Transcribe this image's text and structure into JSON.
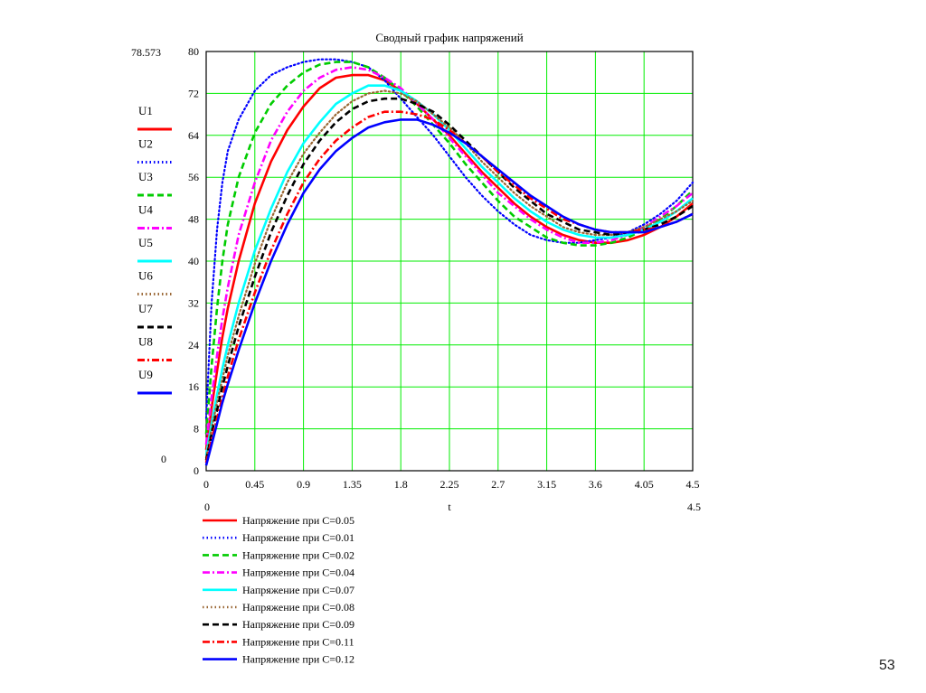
{
  "page": {
    "slide_number": "53"
  },
  "chart_data": {
    "type": "line",
    "title": "Сводный график напряжений",
    "xlabel": "t",
    "ylabel": "",
    "xlim": [
      0,
      4.5
    ],
    "ylim": [
      0,
      80
    ],
    "grid": true,
    "x_ticks": [
      "0",
      "0.45",
      "0.9",
      "1.35",
      "1.8",
      "2.25",
      "2.7",
      "3.15",
      "3.6",
      "4.05",
      "4.5"
    ],
    "y_ticks": [
      "0",
      "8",
      "16",
      "24",
      "32",
      "40",
      "48",
      "56",
      "64",
      "72",
      "80"
    ],
    "y_max_readout": "78.573",
    "y_min_readout": "0",
    "x_min_readout": "0",
    "x_max_readout": "4.5",
    "x": [
      0,
      0.05,
      0.1,
      0.15,
      0.2,
      0.3,
      0.45,
      0.6,
      0.75,
      0.9,
      1.05,
      1.2,
      1.35,
      1.5,
      1.65,
      1.8,
      1.95,
      2.1,
      2.25,
      2.4,
      2.55,
      2.7,
      2.85,
      3.0,
      3.15,
      3.3,
      3.45,
      3.6,
      3.75,
      3.9,
      4.05,
      4.2,
      4.35,
      4.5
    ],
    "series": [
      {
        "name": "U1",
        "legend": "Напряжение при C=0.05",
        "color": "#ff0000",
        "dash": "solid",
        "values": [
          4,
          12,
          19,
          25.5,
          31,
          40,
          51,
          59,
          65,
          69.5,
          73,
          75,
          75.5,
          75.5,
          74.5,
          72.5,
          70,
          67,
          64,
          60.5,
          57,
          54,
          51,
          48.5,
          46.5,
          45,
          44,
          43.5,
          43.5,
          44,
          45,
          46.5,
          48.5,
          51
        ]
      },
      {
        "name": "U2",
        "legend": "Напряжение при C=0.01",
        "color": "#0000ff",
        "dash": "dot",
        "values": [
          10,
          32,
          46,
          55,
          61,
          67,
          72.5,
          75.5,
          77,
          78,
          78.5,
          78.5,
          78,
          77,
          74.5,
          71,
          67.5,
          64,
          60,
          56,
          52.5,
          49.5,
          47,
          45,
          44,
          43.5,
          43.5,
          44,
          44.5,
          45.5,
          47,
          49,
          51.5,
          55
        ]
      },
      {
        "name": "U3",
        "legend": "Напряжение при C=0.02",
        "color": "#00cc00",
        "dash": "dash",
        "values": [
          7,
          20,
          31,
          40,
          47,
          56,
          64.5,
          70,
          73.5,
          76,
          77.5,
          78,
          78,
          77,
          75,
          72.5,
          69.5,
          66,
          62.5,
          58.5,
          55,
          51.5,
          48.5,
          46.5,
          44.5,
          43.5,
          43,
          43,
          43.5,
          44.5,
          46,
          48,
          50.5,
          53.5
        ]
      },
      {
        "name": "U4",
        "legend": "Напряжение при C=0.04",
        "color": "#ff00ff",
        "dash": "dashdot",
        "values": [
          5,
          14,
          22,
          29,
          35,
          45,
          55,
          63,
          68.5,
          72.5,
          75,
          76.5,
          77,
          76.5,
          75,
          73,
          70,
          67,
          63.5,
          60,
          56.5,
          53,
          50.5,
          48,
          46,
          44.5,
          43.5,
          43.5,
          44,
          45,
          46.5,
          48.5,
          50.5,
          53
        ]
      },
      {
        "name": "U5",
        "legend": "Напряжение при C=0.07",
        "color": "#00ffff",
        "dash": "solid",
        "values": [
          3,
          9,
          14.5,
          19.5,
          24,
          32,
          42,
          50,
          57,
          62.5,
          66.5,
          70,
          72,
          73.5,
          73.5,
          72.5,
          70.5,
          68,
          65,
          61.5,
          58,
          55,
          52,
          49.5,
          47.5,
          46,
          45,
          44.5,
          44.5,
          45,
          46,
          47.5,
          49.5,
          52
        ]
      },
      {
        "name": "U6",
        "legend": "Напряжение при C=0.08",
        "color": "#996633",
        "dash": "dot",
        "values": [
          2.5,
          8,
          13,
          17.5,
          22,
          29.5,
          39.5,
          48,
          55,
          60.5,
          64.5,
          68,
          70.5,
          72,
          72.5,
          72,
          70.5,
          68,
          65.5,
          62.5,
          59,
          56,
          53,
          50.5,
          48.5,
          46.5,
          45.5,
          45,
          45,
          45.5,
          46.5,
          48,
          49.5,
          51.5
        ]
      },
      {
        "name": "U7",
        "legend": "Напряжение при C=0.09",
        "color": "#000000",
        "dash": "dash",
        "values": [
          2,
          7,
          11.5,
          16,
          20,
          27.5,
          37,
          45.5,
          52.5,
          58.5,
          63,
          66.5,
          69,
          70.5,
          71,
          71,
          70,
          68.5,
          66,
          63,
          60,
          57,
          54,
          51.5,
          49,
          47.5,
          46,
          45.5,
          45,
          45.5,
          46,
          47,
          48.5,
          50.5
        ]
      },
      {
        "name": "U8",
        "legend": "Напряжение при C=0.11",
        "color": "#ff0000",
        "dash": "dashdot",
        "values": [
          1.5,
          6,
          10,
          14,
          18,
          25,
          34,
          42,
          49,
          55,
          59.5,
          63,
          65.5,
          67.5,
          68.5,
          68.5,
          68,
          67,
          65,
          62.5,
          60,
          57,
          54.5,
          52,
          50,
          48,
          47,
          46,
          45.5,
          45.5,
          46,
          46.5,
          47.5,
          49
        ]
      },
      {
        "name": "U9",
        "legend": "Напряжение при C=0.12",
        "color": "#0000ff",
        "dash": "solid",
        "values": [
          1,
          5,
          9,
          13,
          16.5,
          23,
          32,
          40,
          47,
          53,
          57.5,
          61,
          63.5,
          65.5,
          66.5,
          67,
          67,
          66,
          64.5,
          62.5,
          60,
          57.5,
          55,
          52.5,
          50.5,
          48.5,
          47,
          46,
          45.5,
          45.5,
          45.5,
          46.5,
          47.5,
          49
        ]
      }
    ]
  }
}
